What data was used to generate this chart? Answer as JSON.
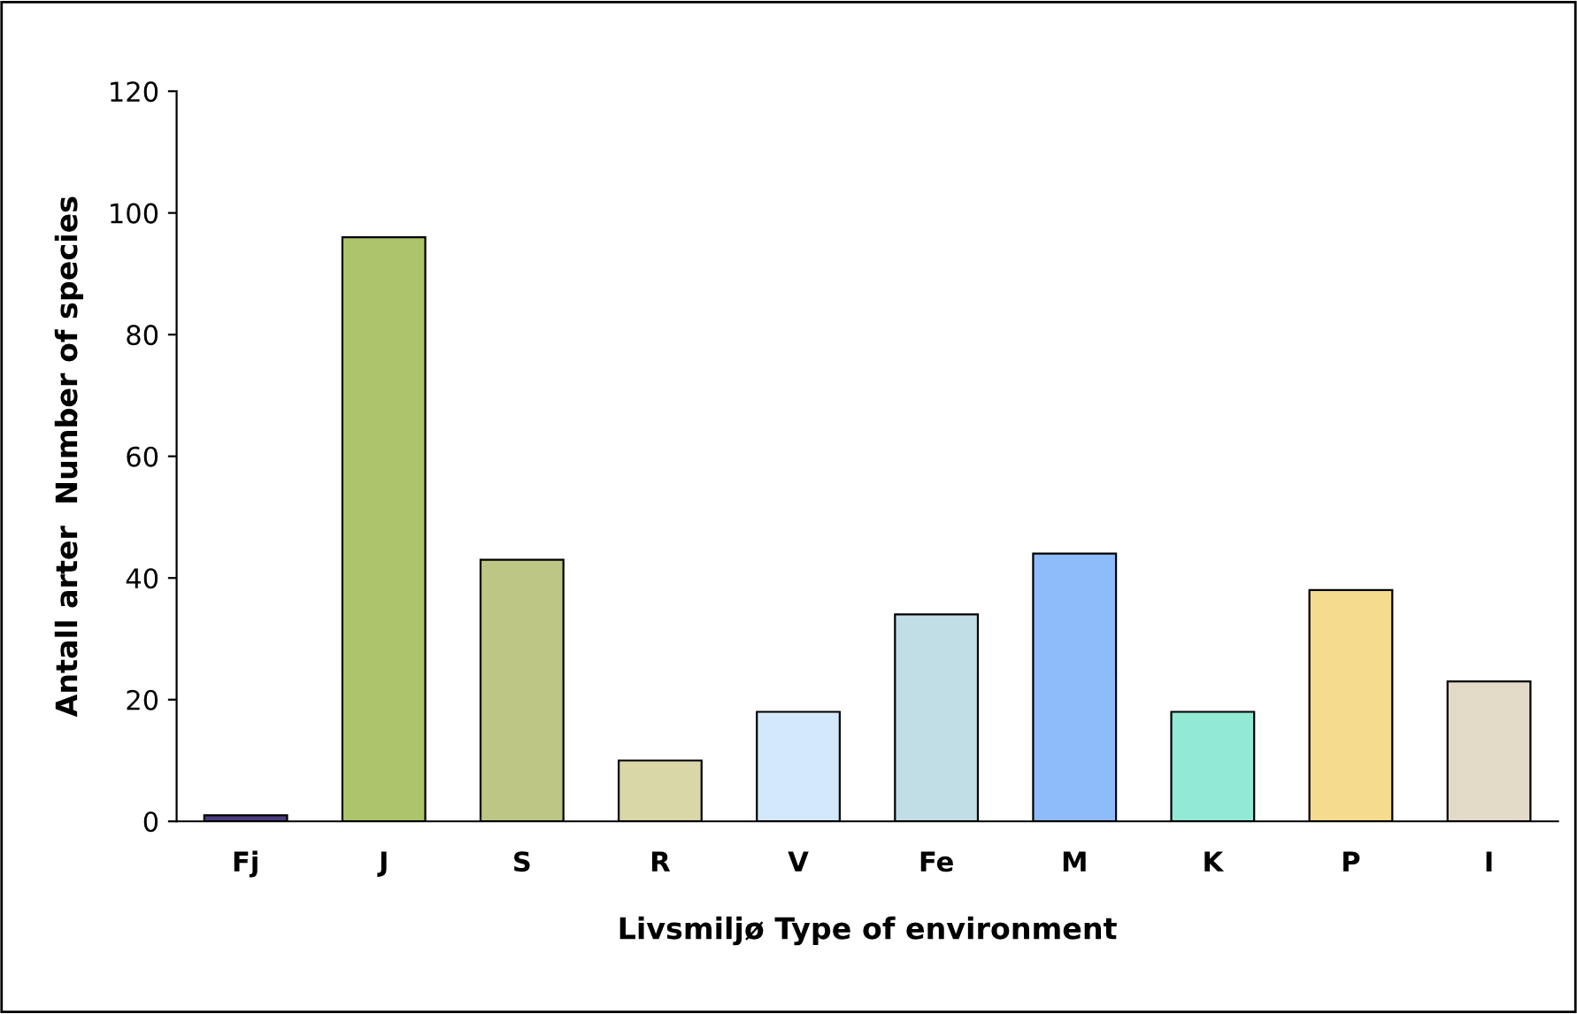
{
  "chart_data": {
    "type": "bar",
    "xlabel": "Livsmiljø Type of environment",
    "ylabel": "Antall arter  Number of species",
    "categories": [
      "Fj",
      "J",
      "S",
      "R",
      "V",
      "Fe",
      "M",
      "K",
      "P",
      "I"
    ],
    "values": [
      1,
      96,
      43,
      10,
      18,
      34,
      44,
      18,
      38,
      23
    ],
    "colors": [
      "#4b3d7d",
      "#adc46a",
      "#bec686",
      "#d9d6a8",
      "#d3e8fb",
      "#c1dde6",
      "#8ebcfb",
      "#93ead4",
      "#f5db8d",
      "#e3dac8"
    ],
    "ylim": [
      0,
      120
    ],
    "yticks": [
      0,
      20,
      40,
      60,
      80,
      100,
      120
    ],
    "grid": false,
    "legend": false
  }
}
